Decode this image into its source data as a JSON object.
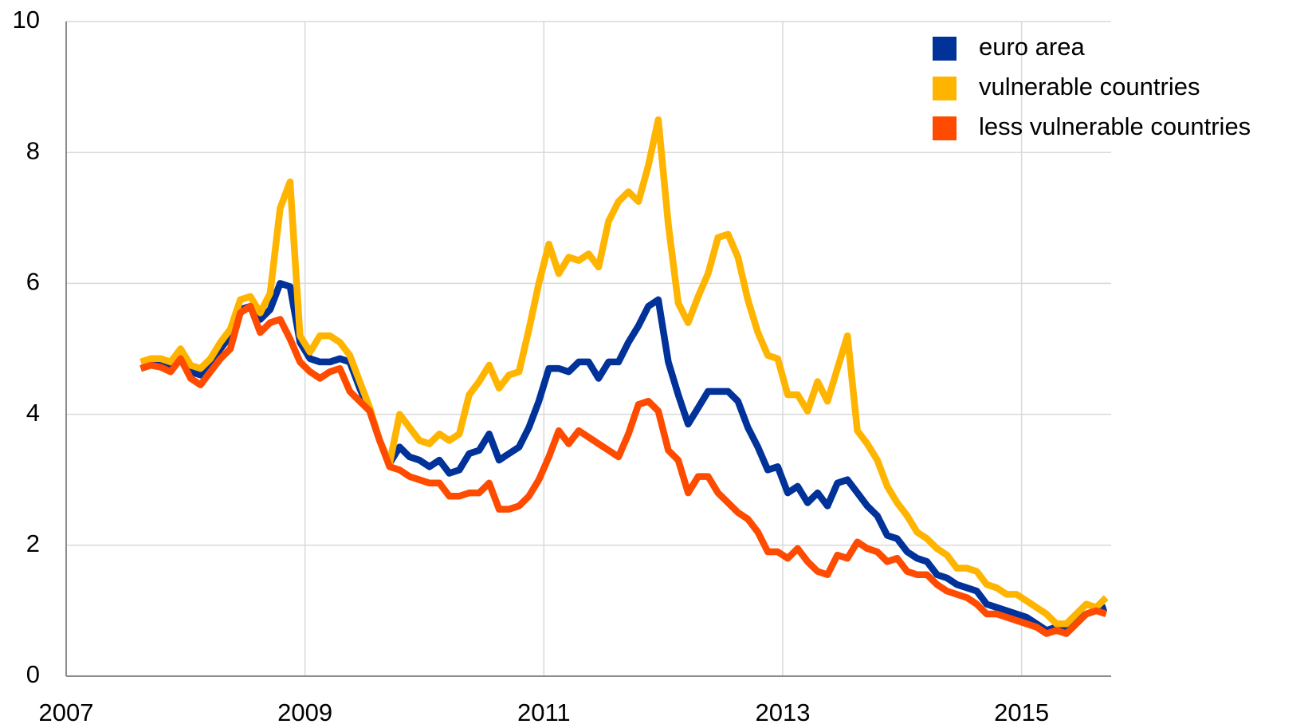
{
  "chart_data": {
    "type": "line",
    "x": [
      2007.625,
      2007.708,
      2007.792,
      2007.875,
      2007.958,
      2008.042,
      2008.125,
      2008.208,
      2008.292,
      2008.375,
      2008.458,
      2008.542,
      2008.625,
      2008.708,
      2008.792,
      2008.875,
      2008.958,
      2009.042,
      2009.125,
      2009.208,
      2009.292,
      2009.375,
      2009.458,
      2009.542,
      2009.625,
      2009.708,
      2009.792,
      2009.875,
      2009.958,
      2010.042,
      2010.125,
      2010.208,
      2010.292,
      2010.375,
      2010.458,
      2010.542,
      2010.625,
      2010.708,
      2010.792,
      2010.875,
      2010.958,
      2011.042,
      2011.125,
      2011.208,
      2011.292,
      2011.375,
      2011.458,
      2011.542,
      2011.625,
      2011.708,
      2011.792,
      2011.875,
      2011.958,
      2012.042,
      2012.125,
      2012.208,
      2012.292,
      2012.375,
      2012.458,
      2012.542,
      2012.625,
      2012.708,
      2012.792,
      2012.875,
      2012.958,
      2013.042,
      2013.125,
      2013.208,
      2013.292,
      2013.375,
      2013.458,
      2013.542,
      2013.625,
      2013.708,
      2013.792,
      2013.875,
      2013.958,
      2014.042,
      2014.125,
      2014.208,
      2014.292,
      2014.375,
      2014.458,
      2014.542,
      2014.625,
      2014.708,
      2014.792,
      2014.875,
      2014.958,
      2015.042,
      2015.125,
      2015.208,
      2015.292,
      2015.375,
      2015.458,
      2015.542,
      2015.625,
      2015.708
    ],
    "series": [
      {
        "name": "euro area",
        "color": "#003299",
        "values": [
          4.7,
          4.75,
          4.75,
          4.7,
          4.85,
          4.65,
          4.6,
          4.8,
          5.0,
          5.2,
          5.6,
          5.65,
          5.45,
          5.6,
          6.0,
          5.95,
          5.1,
          4.85,
          4.8,
          4.8,
          4.85,
          4.8,
          4.4,
          4.05,
          3.6,
          3.25,
          3.5,
          3.35,
          3.3,
          3.2,
          3.3,
          3.1,
          3.15,
          3.4,
          3.45,
          3.7,
          3.3,
          3.4,
          3.5,
          3.8,
          4.2,
          4.7,
          4.7,
          4.65,
          4.8,
          4.8,
          4.55,
          4.8,
          4.8,
          5.1,
          5.35,
          5.65,
          5.75,
          4.8,
          4.3,
          3.85,
          4.1,
          4.35,
          4.35,
          4.35,
          4.2,
          3.8,
          3.5,
          3.15,
          3.2,
          2.8,
          2.9,
          2.65,
          2.8,
          2.6,
          2.95,
          3.0,
          2.8,
          2.6,
          2.45,
          2.15,
          2.1,
          1.9,
          1.8,
          1.75,
          1.55,
          1.5,
          1.4,
          1.35,
          1.3,
          1.1,
          1.05,
          1.0,
          0.95,
          0.9,
          0.8,
          0.7,
          0.75,
          0.7,
          0.85,
          0.95,
          1.0,
          1.05
        ]
      },
      {
        "name": "vulnerable countries",
        "color": "#ffb400",
        "values": [
          4.8,
          4.85,
          4.85,
          4.8,
          5.0,
          4.75,
          4.7,
          4.85,
          5.1,
          5.3,
          5.75,
          5.8,
          5.55,
          5.85,
          7.15,
          7.55,
          5.2,
          4.95,
          5.2,
          5.2,
          5.1,
          4.9,
          4.5,
          4.1,
          3.6,
          3.25,
          4.0,
          3.8,
          3.6,
          3.55,
          3.7,
          3.6,
          3.7,
          4.3,
          4.5,
          4.75,
          4.4,
          4.6,
          4.65,
          5.3,
          6.0,
          6.6,
          6.15,
          6.4,
          6.35,
          6.45,
          6.25,
          6.95,
          7.25,
          7.4,
          7.25,
          7.8,
          8.5,
          6.9,
          5.7,
          5.4,
          5.8,
          6.15,
          6.7,
          6.75,
          6.4,
          5.75,
          5.25,
          4.9,
          4.85,
          4.3,
          4.3,
          4.05,
          4.5,
          4.2,
          4.7,
          5.2,
          3.75,
          3.55,
          3.3,
          2.9,
          2.65,
          2.45,
          2.2,
          2.1,
          1.95,
          1.85,
          1.65,
          1.65,
          1.6,
          1.4,
          1.35,
          1.25,
          1.25,
          1.15,
          1.05,
          0.95,
          0.8,
          0.8,
          0.95,
          1.1,
          1.05,
          1.2
        ]
      },
      {
        "name": "less vulnerable countries",
        "color": "#ff4b00",
        "values": [
          4.7,
          4.75,
          4.72,
          4.65,
          4.85,
          4.55,
          4.45,
          4.65,
          4.85,
          5.0,
          5.55,
          5.65,
          5.25,
          5.4,
          5.45,
          5.15,
          4.8,
          4.65,
          4.55,
          4.65,
          4.7,
          4.35,
          4.2,
          4.05,
          3.6,
          3.2,
          3.15,
          3.05,
          3.0,
          2.95,
          2.95,
          2.75,
          2.75,
          2.8,
          2.8,
          2.95,
          2.55,
          2.55,
          2.6,
          2.75,
          3.0,
          3.35,
          3.75,
          3.55,
          3.75,
          3.65,
          3.55,
          3.45,
          3.35,
          3.7,
          4.15,
          4.2,
          4.05,
          3.45,
          3.3,
          2.8,
          3.05,
          3.05,
          2.8,
          2.65,
          2.5,
          2.4,
          2.2,
          1.9,
          1.9,
          1.8,
          1.95,
          1.75,
          1.6,
          1.55,
          1.85,
          1.8,
          2.05,
          1.95,
          1.9,
          1.75,
          1.8,
          1.6,
          1.55,
          1.55,
          1.4,
          1.3,
          1.25,
          1.2,
          1.1,
          0.95,
          0.95,
          0.9,
          0.85,
          0.8,
          0.75,
          0.65,
          0.7,
          0.65,
          0.8,
          0.95,
          1.0,
          0.95
        ]
      }
    ],
    "xlim": [
      2007,
      2015.75
    ],
    "xticks": [
      2007,
      2009,
      2011,
      2013,
      2015
    ],
    "ylim": [
      0,
      10
    ],
    "yticks": [
      0,
      2,
      4,
      6,
      8,
      10
    ],
    "grid": true,
    "legend": "top-right"
  }
}
